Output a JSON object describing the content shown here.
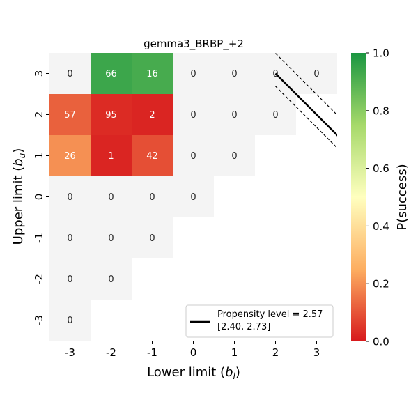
{
  "chart_data": {
    "type": "heatmap",
    "title": "gemma3_BRBP_+2",
    "xlabel": "Lower limit (b_l)",
    "ylabel": "Upper limit (b_u)",
    "x_categories": [
      "-3",
      "-2",
      "-1",
      "0",
      "1",
      "2",
      "3"
    ],
    "y_categories": [
      "3",
      "2",
      "1",
      "0",
      "-1",
      "-2",
      "-3"
    ],
    "values": [
      [
        0,
        66,
        16,
        0,
        0,
        0,
        0
      ],
      [
        57,
        95,
        2,
        0,
        0,
        0,
        null
      ],
      [
        26,
        1,
        42,
        0,
        0,
        null,
        null
      ],
      [
        0,
        0,
        0,
        0,
        null,
        null,
        null
      ],
      [
        0,
        0,
        0,
        null,
        null,
        null,
        null
      ],
      [
        0,
        0,
        null,
        null,
        null,
        null,
        null
      ],
      [
        0,
        null,
        null,
        null,
        null,
        null,
        null
      ]
    ],
    "heat_values": [
      [
        null,
        0.94,
        0.92,
        null,
        null,
        null,
        null
      ],
      [
        0.12,
        0.03,
        0.02,
        null,
        null,
        null,
        null
      ],
      [
        0.2,
        0.02,
        0.09,
        null,
        null,
        null,
        null
      ],
      [
        null,
        null,
        null,
        null,
        null,
        null,
        null
      ],
      [
        null,
        null,
        null,
        null,
        null,
        null,
        null
      ],
      [
        null,
        null,
        null,
        null,
        null,
        null,
        null
      ],
      [
        null,
        null,
        null,
        null,
        null,
        null,
        null
      ]
    ],
    "colorbar": {
      "label": "P(success)",
      "range": [
        0.0,
        1.0
      ],
      "ticks": [
        "0.0",
        "0.2",
        "0.4",
        "0.6",
        "0.8",
        "1.0"
      ],
      "colors": [
        "#d7191c",
        "#fdae61",
        "#ffffbf",
        "#a6d96a",
        "#1a9641"
      ]
    },
    "propensity": {
      "level": 2.57,
      "ci": [
        2.4,
        2.73
      ],
      "legend_line1": "Propensity level = 2.57",
      "legend_line2": "[2.40, 2.73]",
      "legend_placement": "lower-right"
    },
    "zero_cell_color": "#f4f4f4"
  }
}
